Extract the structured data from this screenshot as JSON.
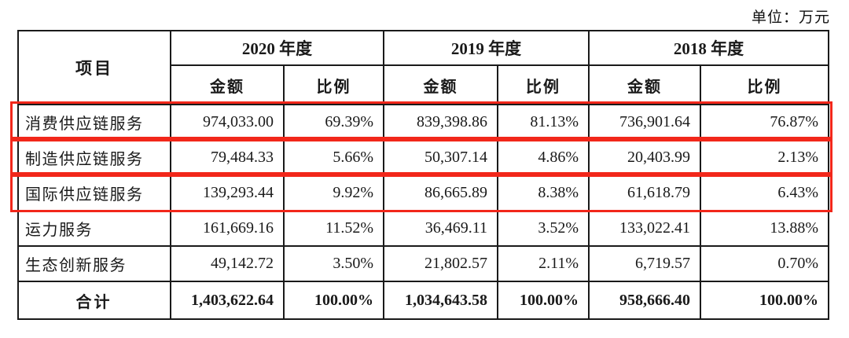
{
  "unit_label": "单位：万元",
  "highlight_color": "#f2271a",
  "table": {
    "item_header": "项目",
    "year_groups": [
      {
        "year": "2020 年度",
        "amount_label": "金额",
        "ratio_label": "比例"
      },
      {
        "year": "2019 年度",
        "amount_label": "金额",
        "ratio_label": "比例"
      },
      {
        "year": "2018 年度",
        "amount_label": "金额",
        "ratio_label": "比例"
      }
    ],
    "rows": [
      {
        "item": "消费供应链服务",
        "highlighted": true,
        "values": [
          "974,033.00",
          "69.39%",
          "839,398.86",
          "81.13%",
          "736,901.64",
          "76.87%"
        ]
      },
      {
        "item": "制造供应链服务",
        "highlighted": true,
        "values": [
          "79,484.33",
          "5.66%",
          "50,307.14",
          "4.86%",
          "20,403.99",
          "2.13%"
        ]
      },
      {
        "item": "国际供应链服务",
        "highlighted": true,
        "values": [
          "139,293.44",
          "9.92%",
          "86,665.89",
          "8.38%",
          "61,618.79",
          "6.43%"
        ]
      },
      {
        "item": "运力服务",
        "highlighted": false,
        "values": [
          "161,669.16",
          "11.52%",
          "36,469.11",
          "3.52%",
          "133,022.41",
          "13.88%"
        ]
      },
      {
        "item": "生态创新服务",
        "highlighted": false,
        "values": [
          "49,142.72",
          "3.50%",
          "21,802.57",
          "2.11%",
          "6,719.57",
          "0.70%"
        ]
      }
    ],
    "total_row": {
      "item": "合计",
      "values": [
        "1,403,622.64",
        "100.00%",
        "1,034,643.58",
        "100.00%",
        "958,666.40",
        "100.00%"
      ]
    }
  }
}
